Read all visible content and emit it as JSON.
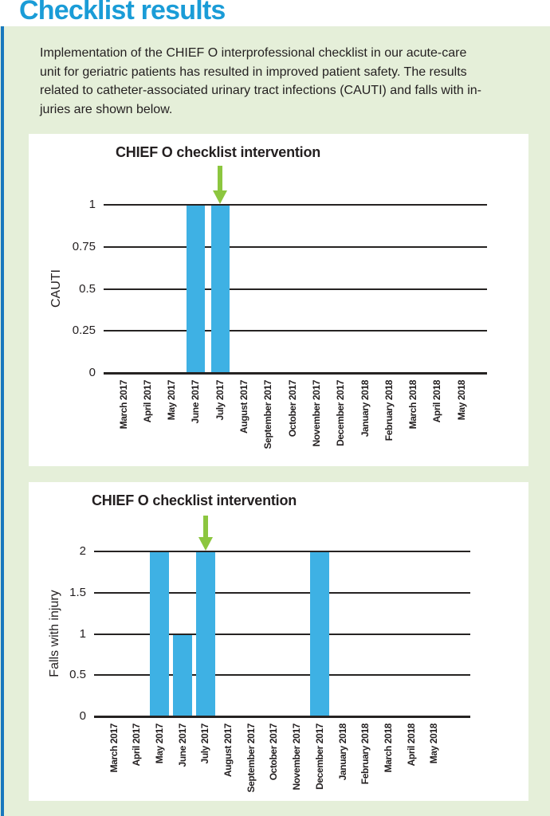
{
  "page": {
    "title": "Checklist results"
  },
  "intro": {
    "lines": [
      "Implementation of the CHIEF O interprofessional checklist in our acute-care",
      "unit for geriatric patients has resulted in improved patient safety. The results",
      "related to catheter-associated urinary tract infections (CAUTI) and falls with in-",
      "juries are shown below."
    ]
  },
  "colors": {
    "title_blue": "#1A9CD7",
    "accent_blue": "#1878BE",
    "panel_green": "#E5EFD9",
    "bar_blue": "#3EB1E4",
    "arrow_green": "#8CC63F",
    "gridline_dark": "#262322",
    "text_dark": "#231F20"
  },
  "chart_data": [
    {
      "type": "bar",
      "title": "CHIEF O checklist intervention",
      "ylabel": "CAUTI",
      "xlabel": "",
      "ylim": [
        0,
        1
      ],
      "yticks": [
        "1",
        "0.75",
        "0.5",
        "0.25",
        "0"
      ],
      "grid": "horizontal",
      "legend": "none",
      "annotation_arrow_at": "July 2017",
      "categories": [
        "March 2017",
        "April 2017",
        "May 2017",
        "June 2017",
        "July 2017",
        "August 2017",
        "September 2017",
        "October 2017",
        "November 2017",
        "December 2017",
        "January 2018",
        "February 2018",
        "March 2018",
        "April 2018",
        "May 2018"
      ],
      "values": [
        0,
        0,
        0,
        1,
        1,
        0,
        0,
        0,
        0,
        0,
        0,
        0,
        0,
        0,
        0
      ]
    },
    {
      "type": "bar",
      "title": "CHIEF O checklist intervention",
      "ylabel": "Falls with injury",
      "xlabel": "",
      "ylim": [
        0,
        2
      ],
      "yticks": [
        "2",
        "1.5",
        "1",
        "0.5",
        "0"
      ],
      "grid": "horizontal",
      "legend": "none",
      "annotation_arrow_at": "July 2017",
      "categories": [
        "March 2017",
        "April 2017",
        "May 2017",
        "June 2017",
        "July 2017",
        "August 2017",
        "September 2017",
        "October 2017",
        "November 2017",
        "December 2017",
        "January 2018",
        "February 2018",
        "March 2018",
        "April 2018",
        "May 2018"
      ],
      "values": [
        0,
        0,
        2,
        1,
        2,
        0,
        0,
        0,
        0,
        2,
        0,
        0,
        0,
        0,
        0
      ]
    }
  ]
}
